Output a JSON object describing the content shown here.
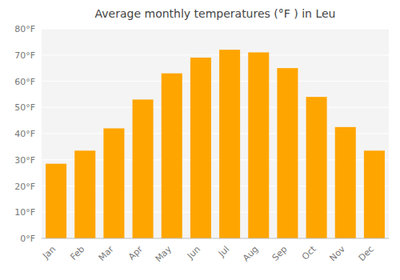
{
  "chart_data": {
    "type": "bar",
    "title": "Average monthly temperatures (°F ) in Leu",
    "categories": [
      "Jan",
      "Feb",
      "Mar",
      "Apr",
      "May",
      "Jun",
      "Jul",
      "Aug",
      "Sep",
      "Oct",
      "Nov",
      "Dec"
    ],
    "values": [
      28.5,
      33.5,
      42.0,
      53.0,
      63.0,
      69.0,
      72.0,
      71.0,
      65.0,
      54.0,
      42.5,
      33.5
    ],
    "color": "#FFA500",
    "ylim": [
      0,
      80
    ],
    "yticks": [
      {
        "value": 0,
        "label": "0°F"
      },
      {
        "value": 10,
        "label": "10°F"
      },
      {
        "value": 20,
        "label": "20°F"
      },
      {
        "value": 30,
        "label": "30°F"
      },
      {
        "value": 40,
        "label": "40°F"
      },
      {
        "value": 50,
        "label": "50°F"
      },
      {
        "value": 60,
        "label": "60°F"
      },
      {
        "value": 70,
        "label": "70°F"
      },
      {
        "value": 80,
        "label": "80°F"
      }
    ],
    "grid": true
  }
}
